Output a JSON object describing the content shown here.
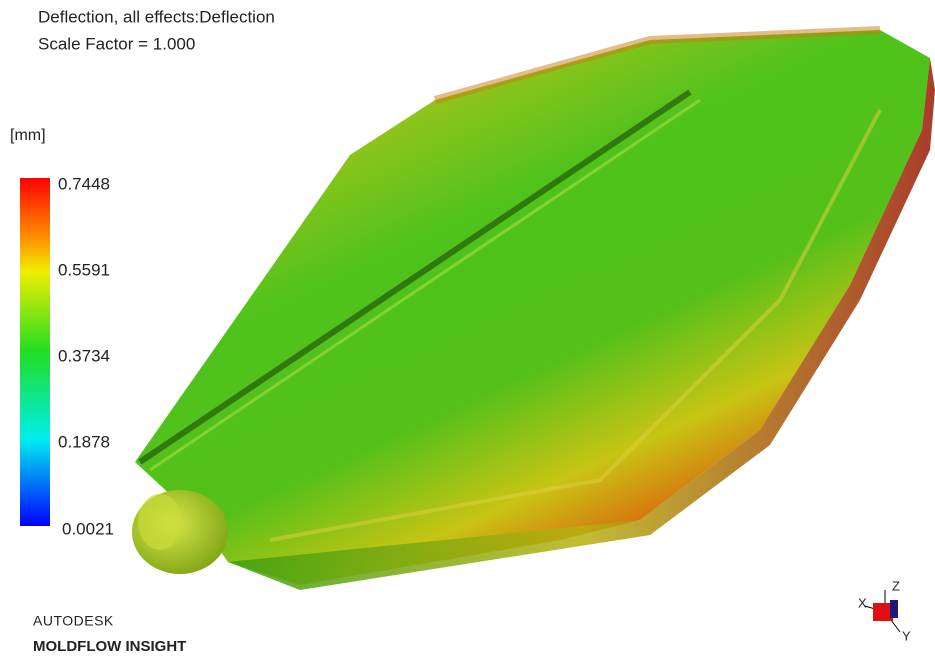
{
  "header": {
    "title": "Deflection, all effects:Deflection",
    "subtitle": "Scale Factor = 1.000"
  },
  "legend": {
    "unit": "[mm]",
    "labels": [
      "0.7448",
      "0.5591",
      "0.3734",
      "0.1878",
      "0.0021"
    ]
  },
  "branding": {
    "company": "AUTODESK",
    "product": "MOLDFLOW INSIGHT"
  },
  "triad": {
    "x": "X",
    "y": "Y",
    "z": "Z"
  }
}
